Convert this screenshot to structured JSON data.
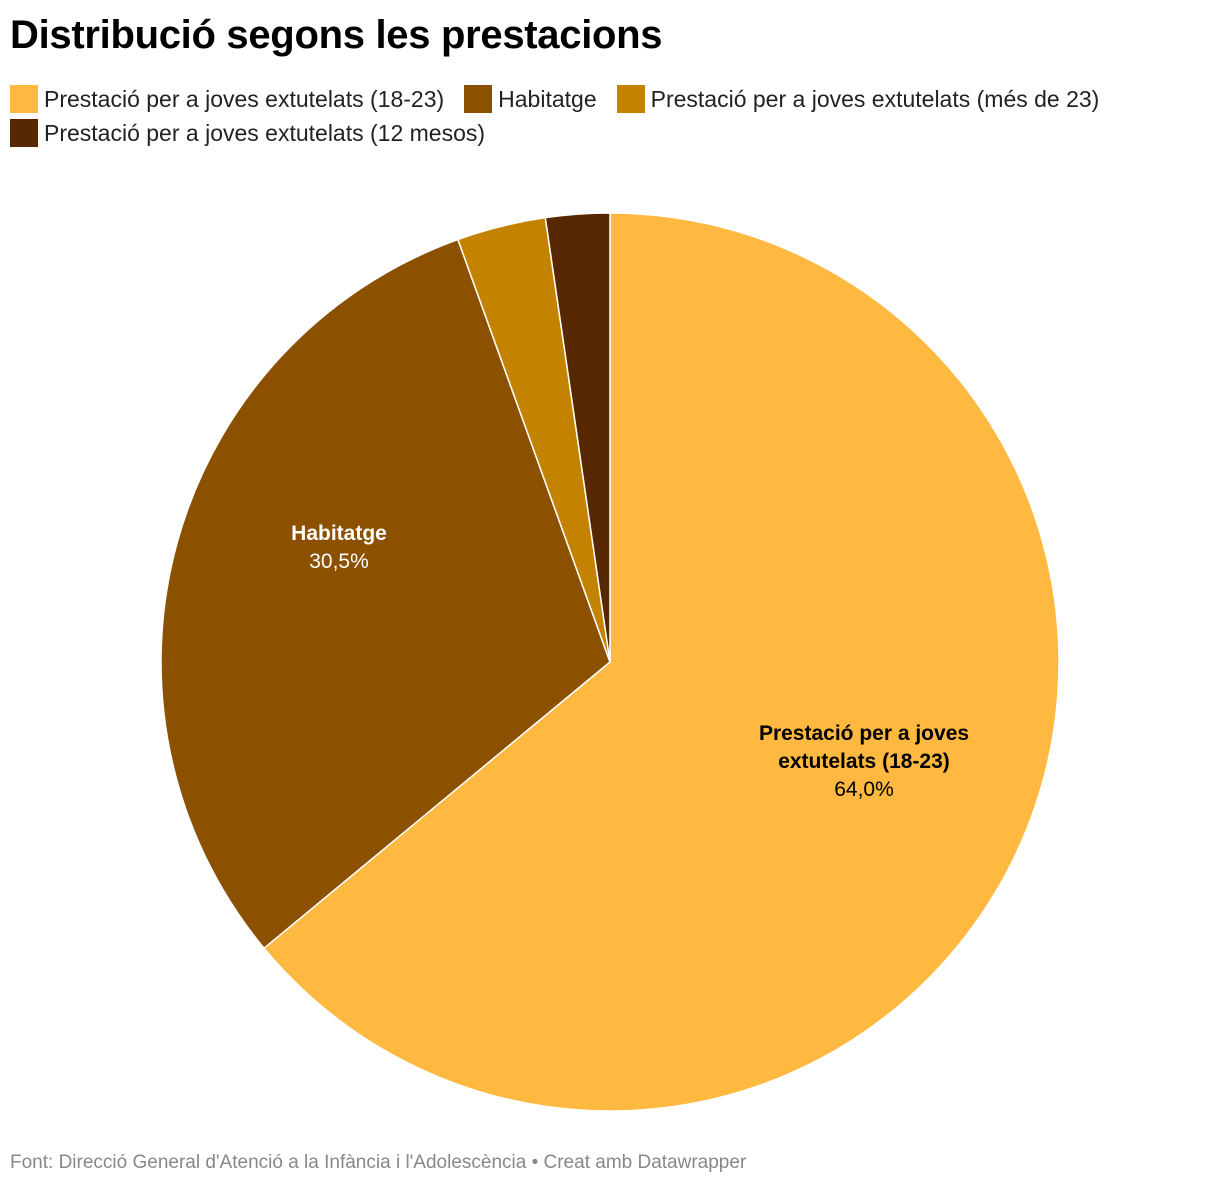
{
  "title": "Distribució segons les prestacions",
  "legend": [
    {
      "label": "Prestació per a joves extutelats (18-23)",
      "color": "#ffb840"
    },
    {
      "label": "Habitatge",
      "color": "#8b5000"
    },
    {
      "label": "Prestació per a joves extutelats (més de 23)",
      "color": "#c38300"
    },
    {
      "label": "Prestació per a joves extutelats (12 mesos)",
      "color": "#562700"
    }
  ],
  "chart_data": {
    "type": "pie",
    "title": "Distribució segons les prestacions",
    "slices": [
      {
        "name": "Prestació per a joves extutelats (18-23)",
        "value": 64.0,
        "color": "#ffb840",
        "label_lines": [
          "Prestació per a joves",
          "extutelats (18-23)"
        ],
        "value_text": "64,0%",
        "text_color": "#000000"
      },
      {
        "name": "Habitatge",
        "value": 30.5,
        "color": "#8b5000",
        "label_lines": [
          "Habitatge"
        ],
        "value_text": "30,5%",
        "text_color": "#ffffff"
      },
      {
        "name": "Prestació per a joves extutelats (més de 23)",
        "value": 3.2,
        "color": "#c38300"
      },
      {
        "name": "Prestació per a joves extutelats (12 mesos)",
        "value": 2.3,
        "color": "#562700"
      }
    ]
  },
  "footer": "Font: Direcció General d'Atenció a la Infància i l'Adolescència • Creat amb Datawrapper"
}
